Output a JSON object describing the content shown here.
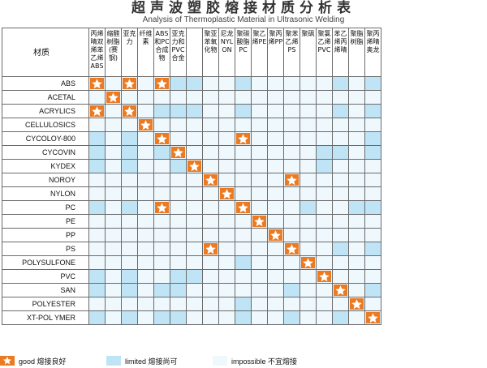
{
  "title": "超声波塑胶熔接材质分析表",
  "subtitle": "Analysis of Thermoplastic Material in Ultrasonic Welding",
  "corner_label": "材质",
  "columns": [
    "丙烯晴双烯苯乙烯ABS",
    "缩醛树脂(赛钢)",
    "亚克力",
    "纤维素",
    "ABS和PC合成物",
    "亚克力和PVC合金",
    "",
    "聚亚苯氧化物",
    "尼龙NYLON",
    "聚碳酸脂PC",
    "聚乙烯PE",
    "聚丙烯PP",
    "聚苯乙烯PS",
    "聚砜",
    "聚氯乙烯PVC",
    "苯乙烯丙烯晴",
    "聚脂树脂",
    "聚丙烯晴奥龙"
  ],
  "rows": [
    {
      "label": "ABS",
      "cells": [
        "G",
        "I",
        "G",
        "I",
        "G",
        "L",
        "L",
        "I",
        "I",
        "L",
        "I",
        "I",
        "I",
        "I",
        "I",
        "L",
        "I",
        "L"
      ]
    },
    {
      "label": "ACETAL",
      "cells": [
        "I",
        "G",
        "I",
        "I",
        "I",
        "I",
        "I",
        "I",
        "I",
        "I",
        "I",
        "I",
        "I",
        "I",
        "I",
        "I",
        "I",
        "I"
      ]
    },
    {
      "label": "ACRYLICS",
      "cells": [
        "G",
        "I",
        "G",
        "I",
        "L",
        "L",
        "L",
        "I",
        "I",
        "L",
        "I",
        "I",
        "I",
        "I",
        "I",
        "L",
        "I",
        "L"
      ]
    },
    {
      "label": "CELLULOSICS",
      "cells": [
        "I",
        "I",
        "I",
        "G",
        "I",
        "I",
        "I",
        "I",
        "I",
        "I",
        "I",
        "I",
        "I",
        "I",
        "I",
        "I",
        "I",
        "I"
      ]
    },
    {
      "label": "CYCOLOY-800",
      "cells": [
        "L",
        "I",
        "L",
        "I",
        "G",
        "I",
        "I",
        "I",
        "I",
        "G",
        "I",
        "I",
        "I",
        "I",
        "I",
        "I",
        "I",
        "L"
      ]
    },
    {
      "label": "CYCOVIN",
      "cells": [
        "L",
        "I",
        "L",
        "I",
        "L",
        "G",
        "I",
        "I",
        "I",
        "I",
        "I",
        "I",
        "I",
        "I",
        "L",
        "L",
        "I",
        "L"
      ]
    },
    {
      "label": "KYDEX",
      "cells": [
        "L",
        "I",
        "L",
        "I",
        "I",
        "L",
        "G",
        "I",
        "I",
        "I",
        "I",
        "I",
        "I",
        "I",
        "L",
        "I",
        "I",
        "I"
      ]
    },
    {
      "label": "NOROY",
      "cells": [
        "I",
        "I",
        "I",
        "I",
        "I",
        "I",
        "I",
        "G",
        "I",
        "I",
        "I",
        "I",
        "G",
        "I",
        "I",
        "I",
        "I",
        "I"
      ]
    },
    {
      "label": "NYLON",
      "cells": [
        "I",
        "I",
        "I",
        "I",
        "I",
        "I",
        "I",
        "I",
        "G",
        "I",
        "I",
        "I",
        "I",
        "I",
        "I",
        "I",
        "I",
        "I"
      ]
    },
    {
      "label": "PC",
      "cells": [
        "L",
        "I",
        "L",
        "I",
        "G",
        "I",
        "I",
        "I",
        "I",
        "G",
        "I",
        "I",
        "I",
        "L",
        "I",
        "I",
        "L",
        "L"
      ]
    },
    {
      "label": "PE",
      "cells": [
        "I",
        "I",
        "I",
        "I",
        "I",
        "I",
        "I",
        "I",
        "I",
        "I",
        "G",
        "I",
        "I",
        "I",
        "I",
        "I",
        "I",
        "I"
      ]
    },
    {
      "label": "PP",
      "cells": [
        "I",
        "I",
        "I",
        "I",
        "I",
        "I",
        "I",
        "I",
        "I",
        "I",
        "I",
        "G",
        "I",
        "I",
        "I",
        "I",
        "I",
        "I"
      ]
    },
    {
      "label": "PS",
      "cells": [
        "I",
        "I",
        "I",
        "I",
        "I",
        "I",
        "I",
        "G",
        "I",
        "I",
        "I",
        "I",
        "G",
        "I",
        "I",
        "L",
        "I",
        "L"
      ]
    },
    {
      "label": "POLYSULFONE",
      "cells": [
        "I",
        "I",
        "I",
        "I",
        "I",
        "I",
        "I",
        "I",
        "I",
        "L",
        "I",
        "I",
        "I",
        "G",
        "I",
        "I",
        "I",
        "I"
      ]
    },
    {
      "label": "PVC",
      "cells": [
        "L",
        "I",
        "L",
        "I",
        "I",
        "L",
        "L",
        "I",
        "I",
        "I",
        "I",
        "I",
        "I",
        "I",
        "G",
        "I",
        "I",
        "I"
      ]
    },
    {
      "label": "SAN",
      "cells": [
        "L",
        "I",
        "L",
        "I",
        "L",
        "L",
        "I",
        "I",
        "I",
        "I",
        "I",
        "I",
        "L",
        "I",
        "I",
        "G",
        "I",
        "L"
      ]
    },
    {
      "label": "POLYESTER",
      "cells": [
        "I",
        "I",
        "I",
        "I",
        "I",
        "I",
        "I",
        "I",
        "I",
        "L",
        "I",
        "I",
        "I",
        "I",
        "I",
        "I",
        "G",
        "I"
      ]
    },
    {
      "label": "XT-POL YMER",
      "cells": [
        "L",
        "I",
        "L",
        "I",
        "L",
        "L",
        "I",
        "I",
        "I",
        "L",
        "I",
        "I",
        "L",
        "I",
        "I",
        "L",
        "I",
        "G"
      ]
    }
  ],
  "legend": {
    "good": "good 熔接良好",
    "limited": "limited 熔接尚可",
    "impossible": "impossible 不宜熔接"
  },
  "colors": {
    "good": "#ec7a21",
    "limited": "#bfe4f6",
    "impossible": "#eff8fd"
  },
  "icons": {
    "good": "star-icon"
  }
}
